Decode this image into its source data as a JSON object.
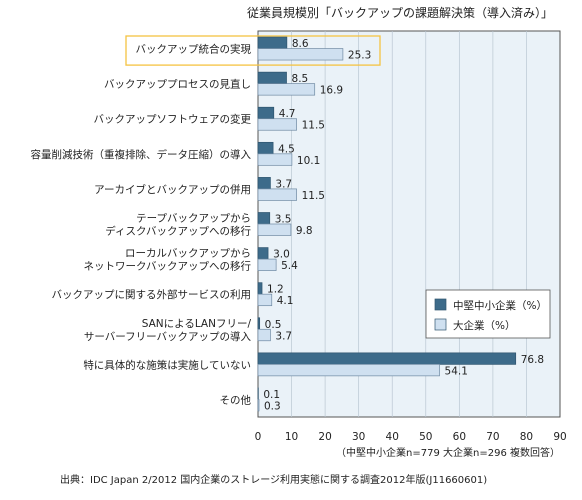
{
  "chart_data": {
    "type": "bar",
    "orientation": "horizontal",
    "title": "従業員規模別「バックアップの課題解決策（導入済み）」",
    "categories": [
      [
        "バックアップ統合の実現"
      ],
      [
        "バックアッププロセスの見直し"
      ],
      [
        "バックアップソフトウェアの変更"
      ],
      [
        "容量削減技術（重複排除、データ圧縮）の導入"
      ],
      [
        "アーカイブとバックアップの併用"
      ],
      [
        "テープバックアップから",
        "ディスクバックアップへの移行"
      ],
      [
        "ローカルバックアップから",
        "ネットワークバックアップへの移行"
      ],
      [
        "バックアップに関する外部サービスの利用"
      ],
      [
        "SANによるLANフリー/",
        "サーバーフリーバックアップの導入"
      ],
      [
        "特に具体的な施策は実施していない"
      ],
      [
        "その他"
      ]
    ],
    "series": [
      {
        "name": "中堅中小企業（%）",
        "color": "#3d6b8a",
        "values": [
          8.6,
          8.5,
          4.7,
          4.5,
          3.7,
          3.5,
          3.0,
          1.2,
          0.5,
          76.8,
          0.1
        ]
      },
      {
        "name": "大企業（%）",
        "color": "#cfe0f0",
        "values": [
          25.3,
          16.9,
          11.5,
          10.1,
          11.5,
          9.8,
          5.4,
          4.1,
          3.7,
          54.1,
          0.3
        ]
      }
    ],
    "xlim": [
      0,
      90
    ],
    "xticks": [
      "0",
      "10",
      "20",
      "30",
      "40",
      "50",
      "60",
      "70",
      "80",
      "90"
    ],
    "note": "（中堅中小企業n=779 大企業n=296 複数回答）",
    "highlight_category_index": 0,
    "highlight_color": "#f5c342",
    "plot_background": "#eaf2f8",
    "legend_position": "right"
  },
  "source": "出典：IDC Japan 2/2012 国内企業のストレージ利用実態に関する調査2012年版(J11660601)"
}
